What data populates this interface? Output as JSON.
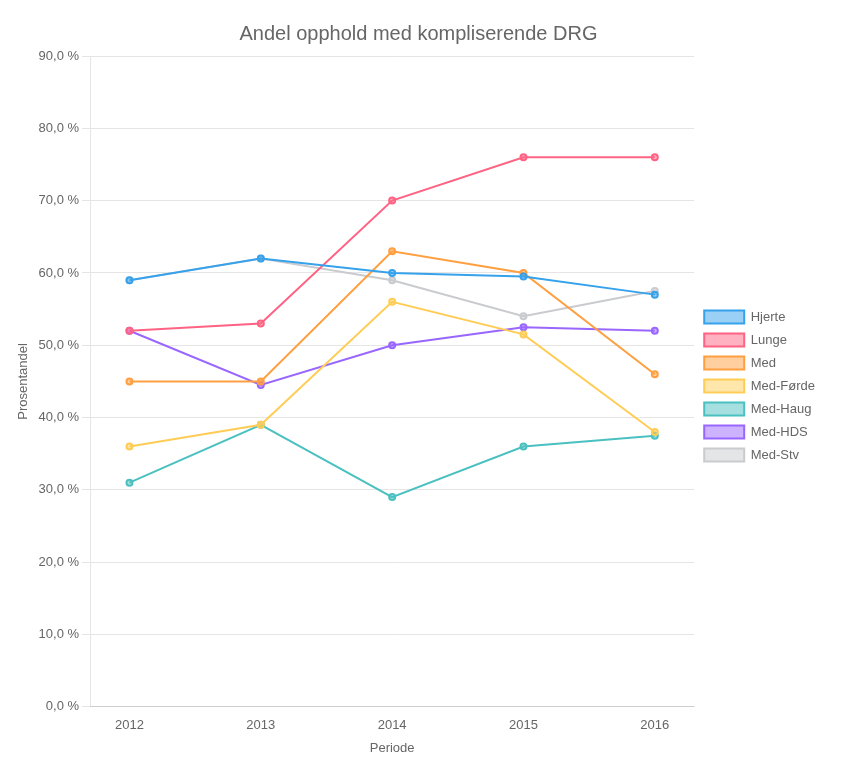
{
  "chart_data": {
    "type": "line",
    "title": "Andel opphold med kompliserende DRG",
    "x_label": "Periode",
    "y_label": "Prosentandel",
    "x": [
      2012,
      2013,
      2014,
      2015,
      2016
    ],
    "series": [
      {
        "name": "Hjerte",
        "values": [
          0.59,
          0.62,
          0.6,
          0.595,
          0.57
        ]
      },
      {
        "name": "Lunge",
        "values": [
          0.52,
          0.53,
          0.7,
          0.76,
          0.76
        ]
      },
      {
        "name": "Med",
        "values": [
          0.45,
          0.45,
          0.63,
          0.6,
          0.46
        ]
      },
      {
        "name": "Med-Førde",
        "values": [
          0.36,
          0.39,
          0.56,
          0.515,
          0.38
        ]
      },
      {
        "name": "Med-Haug",
        "values": [
          0.31,
          0.39,
          0.29,
          0.36,
          0.375
        ]
      },
      {
        "name": "Med-HDS",
        "values": [
          0.52,
          0.445,
          0.5,
          0.525,
          0.52
        ]
      },
      {
        "name": "Med-Stv",
        "values": [
          0.59,
          0.62,
          0.59,
          0.54,
          0.575
        ]
      }
    ],
    "xlim": [
      2011.7,
      2016.3
    ],
    "xticks": [
      2012,
      2013,
      2014,
      2015,
      2016
    ],
    "ylim": [
      0.0,
      0.9
    ],
    "yticks": [
      {
        "value": 0.0,
        "label": "0,0 %"
      },
      {
        "value": 0.1,
        "label": "10,0 %"
      },
      {
        "value": 0.2,
        "label": "20,0 %"
      },
      {
        "value": 0.3,
        "label": "30,0 %"
      },
      {
        "value": 0.4,
        "label": "40,0 %"
      },
      {
        "value": 0.5,
        "label": "50,0 %"
      },
      {
        "value": 0.6,
        "label": "60,0 %"
      },
      {
        "value": 0.7,
        "label": "70,0 %"
      },
      {
        "value": 0.8,
        "label": "80,0 %"
      },
      {
        "value": 0.9,
        "label": "90,0 %"
      }
    ],
    "grid": "y",
    "legend": "right"
  }
}
